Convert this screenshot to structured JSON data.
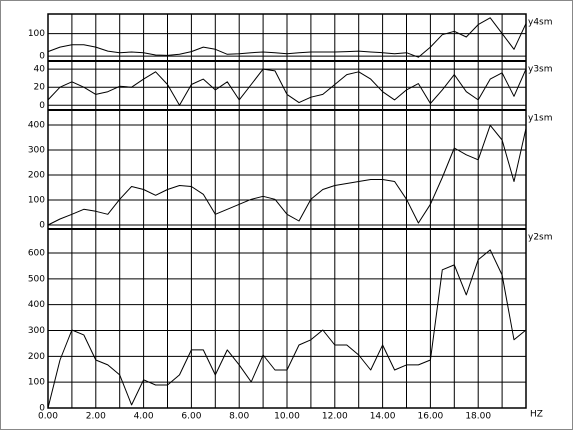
{
  "chart_data": {
    "type": "line",
    "x": [
      0,
      0.5,
      1,
      1.5,
      2,
      2.5,
      3,
      3.5,
      4,
      4.5,
      5,
      5.5,
      6,
      6.5,
      7,
      7.5,
      8,
      8.5,
      9,
      9.5,
      10,
      10.5,
      11,
      11.5,
      12,
      12.5,
      13,
      13.5,
      14,
      14.5,
      15,
      15.5,
      16,
      16.5,
      17,
      17.5,
      18,
      18.5,
      19,
      19.5,
      20
    ],
    "xlim": [
      0,
      20
    ],
    "xticks": [
      {
        "value": 0,
        "label": "0.00"
      },
      {
        "value": 2,
        "label": "2.00"
      },
      {
        "value": 4,
        "label": "4.00"
      },
      {
        "value": 6,
        "label": "6.00"
      },
      {
        "value": 8,
        "label": "8.00"
      },
      {
        "value": 10,
        "label": "10.00"
      },
      {
        "value": 12,
        "label": "12.00"
      },
      {
        "value": 14,
        "label": "14.00"
      },
      {
        "value": 16,
        "label": "16.00"
      },
      {
        "value": 18,
        "label": "18.00"
      }
    ],
    "minor_xticks": [
      1,
      3,
      5,
      7,
      9,
      11,
      13,
      15,
      17,
      19
    ],
    "x_label": "HZ",
    "grid": true,
    "series": [
      {
        "name": "y4sm",
        "color": "#000000",
        "ylim": [
          -13,
          187
        ],
        "yticks": [
          0,
          100
        ],
        "values": [
          20,
          40,
          50,
          50,
          40,
          22,
          15,
          18,
          15,
          5,
          3,
          8,
          20,
          40,
          30,
          8,
          10,
          15,
          18,
          15,
          10,
          15,
          18,
          18,
          18,
          20,
          22,
          18,
          15,
          10,
          15,
          -5,
          40,
          95,
          110,
          85,
          140,
          170,
          100,
          30,
          145
        ]
      },
      {
        "name": "y3sm",
        "color": "#000000",
        "ylim": [
          -3,
          49
        ],
        "yticks": [
          0,
          20,
          40
        ],
        "values": [
          6,
          20,
          26,
          20,
          12,
          15,
          21,
          20,
          29,
          37,
          23,
          0,
          23,
          29,
          17,
          26,
          6,
          23,
          40,
          38,
          12,
          3,
          9,
          12,
          23,
          34,
          37,
          29,
          15,
          6,
          17,
          24,
          2,
          17,
          34,
          15,
          6,
          29,
          36,
          10,
          40
        ]
      },
      {
        "name": "y1sm",
        "color": "#000000",
        "ylim": [
          -8,
          460
        ],
        "yticks": [
          0,
          100,
          200,
          300,
          400
        ],
        "values": [
          0,
          24,
          43,
          63,
          55,
          43,
          103,
          154,
          142,
          119,
          142,
          158,
          154,
          123,
          43,
          63,
          83,
          103,
          115,
          103,
          43,
          16,
          103,
          142,
          158,
          166,
          174,
          182,
          182,
          174,
          103,
          8,
          83,
          190,
          308,
          281,
          261,
          399,
          340,
          174,
          387
        ]
      },
      {
        "name": "y2sm",
        "color": "#000000",
        "ylim": [
          0,
          693
        ],
        "yticks": [
          0,
          100,
          200,
          300,
          400,
          500,
          600
        ],
        "values": [
          0,
          186,
          302,
          283,
          186,
          167,
          128,
          12,
          109,
          89,
          89,
          128,
          225,
          225,
          128,
          225,
          167,
          101,
          205,
          147,
          147,
          244,
          264,
          302,
          244,
          244,
          205,
          147,
          244,
          147,
          167,
          167,
          186,
          535,
          554,
          438,
          574,
          612,
          515,
          264,
          302
        ]
      }
    ]
  }
}
